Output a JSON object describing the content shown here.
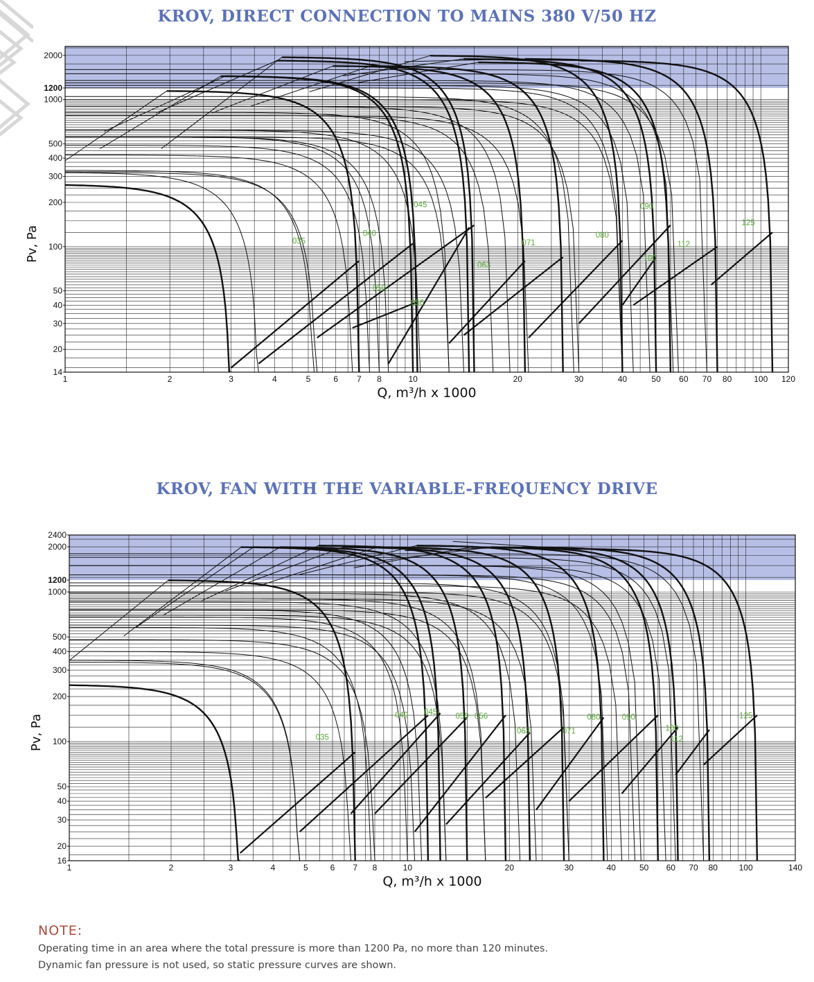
{
  "chart_data": [
    {
      "type": "line",
      "title": "KROV, DIRECT CONNECTION TO MAINS 380 V/50 HZ",
      "xlabel": "Q, m³/h x 1000",
      "ylabel": "Pv, Pa",
      "xscale": "log",
      "yscale": "log",
      "xlim": [
        1,
        120
      ],
      "ylim": [
        14,
        2300
      ],
      "x_ticks": [
        "1",
        "2",
        "3",
        "4",
        "5",
        "6",
        "7",
        "8",
        "10",
        "20",
        "30",
        "40",
        "50",
        "60",
        "70",
        "80",
        "100",
        "120"
      ],
      "y_ticks": [
        "14",
        "20",
        "30",
        "40",
        "50",
        "100",
        "200",
        "300",
        "400",
        "500",
        "1000",
        "1200",
        "2000"
      ],
      "highlight_band": {
        "from": 1200,
        "to": 2300,
        "color": "#b7bfe6"
      },
      "series": [
        {
          "name": "035",
          "label_at": [
            4.7,
            105
          ],
          "curves": [
            {
              "p0": 265,
              "qmax": 3.0,
              "bold": true
            },
            {
              "p0": 330,
              "qmax": 5.2,
              "bold": false
            },
            {
              "p0": 1150,
              "qmax": 7.0,
              "bold": true
            }
          ],
          "corner_low": [
            3.0,
            15
          ],
          "corner_high": [
            7.0,
            80
          ]
        },
        {
          "name": "040",
          "label_at": [
            7.5,
            118
          ],
          "curves": [
            {
              "p0": 320,
              "qmax": 3.6,
              "bold": false
            },
            {
              "p0": 490,
              "qmax": 7.5,
              "bold": false
            },
            {
              "p0": 1450,
              "qmax": 10.0,
              "bold": true
            }
          ],
          "corner_low": [
            3.6,
            16
          ],
          "corner_high": [
            10.0,
            105
          ]
        },
        {
          "name": "045",
          "label_at": [
            10.5,
            185
          ],
          "curves": [
            {
              "p0": 320,
              "qmax": 5.3,
              "bold": false
            },
            {
              "p0": 560,
              "qmax": 8.0,
              "bold": false
            },
            {
              "p0": 1950,
              "qmax": 15.0,
              "bold": true
            }
          ],
          "corner_low": [
            5.3,
            24
          ],
          "corner_high": [
            15.0,
            140
          ]
        },
        {
          "name": "050",
          "label_at": [
            8.0,
            50
          ],
          "curves": [
            {
              "p0": 420,
              "qmax": 6.7,
              "bold": false
            },
            {
              "p0": 620,
              "qmax": 10.5,
              "bold": false
            },
            {
              "p0": 1450,
              "qmax": 10.3,
              "bold": true
            }
          ],
          "corner_low": [
            6.7,
            28
          ],
          "corner_high": [
            10.3,
            42
          ]
        },
        {
          "name": "056",
          "label_at": [
            10.3,
            40
          ],
          "curves": [
            {
              "p0": 560,
              "qmax": 8.5,
              "bold": false
            },
            {
              "p0": 820,
              "qmax": 12.7,
              "bold": false
            },
            {
              "p0": 1850,
              "qmax": 14.5,
              "bold": true
            }
          ],
          "corner_low": [
            8.5,
            16
          ],
          "corner_high": [
            14.5,
            135
          ]
        },
        {
          "name": "063",
          "label_at": [
            16.0,
            72
          ],
          "curves": [
            {
              "p0": 560,
              "qmax": 12.7,
              "bold": false
            },
            {
              "p0": 780,
              "qmax": 17.0,
              "bold": false
            },
            {
              "p0": 1700,
              "qmax": 21.0,
              "bold": true
            }
          ],
          "corner_low": [
            12.7,
            22
          ],
          "corner_high": [
            21.0,
            80
          ]
        },
        {
          "name": "071",
          "label_at": [
            21.5,
            102
          ],
          "curves": [
            {
              "p0": 620,
              "qmax": 14.0,
              "bold": false
            },
            {
              "p0": 900,
              "qmax": 19.0,
              "bold": false
            },
            {
              "p0": 1700,
              "qmax": 27.0,
              "bold": true
            }
          ],
          "corner_low": [
            14.0,
            25
          ],
          "corner_high": [
            27.0,
            85
          ]
        },
        {
          "name": "080",
          "label_at": [
            35.0,
            115
          ],
          "curves": [
            {
              "p0": 780,
              "qmax": 21.5,
              "bold": false
            },
            {
              "p0": 1050,
              "qmax": 29.0,
              "bold": false
            },
            {
              "p0": 2000,
              "qmax": 40.0,
              "bold": true
            }
          ],
          "corner_low": [
            21.5,
            24
          ],
          "corner_high": [
            40.0,
            110
          ]
        },
        {
          "name": "090",
          "label_at": [
            47.0,
            180
          ],
          "curves": [
            {
              "p0": 900,
              "qmax": 30.0,
              "bold": false
            },
            {
              "p0": 1200,
              "qmax": 40.0,
              "bold": false
            },
            {
              "p0": 1800,
              "qmax": 55.0,
              "bold": true
            }
          ],
          "corner_low": [
            30.0,
            30
          ],
          "corner_high": [
            55.0,
            140
          ]
        },
        {
          "name": "100",
          "label_at": [
            48.0,
            80
          ],
          "curves": [
            {
              "p0": 1000,
              "qmax": 40.0,
              "bold": false
            },
            {
              "p0": 1350,
              "qmax": 48.0,
              "bold": false
            },
            {
              "p0": 1900,
              "qmax": 50.0,
              "bold": true
            }
          ],
          "corner_low": [
            40.0,
            40
          ],
          "corner_high": [
            50.0,
            85
          ]
        },
        {
          "name": "112",
          "label_at": [
            60.0,
            100
          ],
          "curves": [
            {
              "p0": 1250,
              "qmax": 43.0,
              "bold": false
            },
            {
              "p0": 1500,
              "qmax": 56.0,
              "bold": false
            },
            {
              "p0": 1900,
              "qmax": 75.0,
              "bold": true
            }
          ],
          "corner_low": [
            43.0,
            40
          ],
          "corner_high": [
            75.0,
            100
          ]
        },
        {
          "name": "125",
          "label_at": [
            92.0,
            140
          ],
          "curves": [
            {
              "p0": 1300,
              "qmax": 58.0,
              "bold": false
            },
            {
              "p0": 1600,
              "qmax": 70.0,
              "bold": false
            },
            {
              "p0": 1850,
              "qmax": 108.0,
              "bold": true
            }
          ],
          "corner_low": [
            72.0,
            55
          ],
          "corner_high": [
            108.0,
            125
          ]
        }
      ]
    },
    {
      "type": "line",
      "title": "KROV, FAN WITH THE VARIABLE-FREQUENCY DRIVE",
      "xlabel": "Q, m³/h x 1000",
      "ylabel": "Pv, Pa",
      "xscale": "log",
      "yscale": "log",
      "xlim": [
        1,
        140
      ],
      "ylim": [
        16,
        2400
      ],
      "x_ticks": [
        "1",
        "2",
        "3",
        "4",
        "5",
        "6",
        "7",
        "8",
        "10",
        "20",
        "30",
        "40",
        "50",
        "60",
        "70",
        "80",
        "100",
        "140"
      ],
      "y_ticks": [
        "16",
        "20",
        "30",
        "40",
        "50",
        "100",
        "200",
        "300",
        "400",
        "500",
        "1000",
        "1200",
        "2000",
        "2400"
      ],
      "highlight_band": {
        "from": 1200,
        "to": 2400,
        "color": "#b7bfe6"
      },
      "series": [
        {
          "name": "035",
          "label_at": [
            5.6,
            103
          ],
          "curves": [
            {
              "p0": 240,
              "qmax": 3.2,
              "bold": true
            },
            {
              "p0": 340,
              "qmax": 4.8,
              "bold": false
            },
            {
              "p0": 1200,
              "qmax": 7.0,
              "bold": true
            }
          ],
          "corner_low": [
            3.2,
            18
          ],
          "corner_high": [
            7.0,
            85
          ]
        },
        {
          "name": "040",
          "label_at": [
            9.6,
            145
          ],
          "curves": [
            {
              "p0": 350,
              "qmax": 4.8,
              "bold": false
            },
            {
              "p0": 580,
              "qmax": 7.8,
              "bold": false
            },
            {
              "p0": 2000,
              "qmax": 11.5,
              "bold": true
            }
          ],
          "corner_low": [
            4.8,
            25
          ],
          "corner_high": [
            11.5,
            150
          ]
        },
        {
          "name": "045",
          "label_at": [
            11.7,
            152
          ],
          "curves": [
            {
              "p0": 400,
              "qmax": 6.8,
              "bold": false
            },
            {
              "p0": 680,
              "qmax": 10.0,
              "bold": false
            },
            {
              "p0": 2000,
              "qmax": 12.5,
              "bold": true
            }
          ],
          "corner_low": [
            6.8,
            33
          ],
          "corner_high": [
            12.5,
            155
          ]
        },
        {
          "name": "050",
          "label_at": [
            14.5,
            142
          ],
          "curves": [
            {
              "p0": 480,
              "qmax": 8.0,
              "bold": false
            },
            {
              "p0": 760,
              "qmax": 11.0,
              "bold": false
            },
            {
              "p0": 2000,
              "qmax": 15.0,
              "bold": true
            }
          ],
          "corner_low": [
            8.0,
            33
          ],
          "corner_high": [
            15.0,
            145
          ]
        },
        {
          "name": "056",
          "label_at": [
            16.5,
            142
          ],
          "curves": [
            {
              "p0": 600,
              "qmax": 10.5,
              "bold": false
            },
            {
              "p0": 860,
              "qmax": 13.0,
              "bold": false
            },
            {
              "p0": 2050,
              "qmax": 19.5,
              "bold": true
            }
          ],
          "corner_low": [
            10.5,
            25
          ],
          "corner_high": [
            19.5,
            150
          ]
        },
        {
          "name": "063",
          "label_at": [
            22.0,
            113
          ],
          "curves": [
            {
              "p0": 700,
              "qmax": 13.0,
              "bold": false
            },
            {
              "p0": 900,
              "qmax": 17.0,
              "bold": false
            },
            {
              "p0": 2000,
              "qmax": 23.0,
              "bold": true
            }
          ],
          "corner_low": [
            13.0,
            28
          ],
          "corner_high": [
            23.0,
            115
          ]
        },
        {
          "name": "071",
          "label_at": [
            30.0,
            113
          ],
          "curves": [
            {
              "p0": 760,
              "qmax": 17.0,
              "bold": false
            },
            {
              "p0": 980,
              "qmax": 21.5,
              "bold": false
            },
            {
              "p0": 2000,
              "qmax": 29.0,
              "bold": true
            }
          ],
          "corner_low": [
            17.0,
            42
          ],
          "corner_high": [
            29.0,
            125
          ]
        },
        {
          "name": "080",
          "label_at": [
            35.5,
            140
          ],
          "curves": [
            {
              "p0": 900,
              "qmax": 24.0,
              "bold": false
            },
            {
              "p0": 1150,
              "qmax": 30.0,
              "bold": false
            },
            {
              "p0": 2050,
              "qmax": 38.0,
              "bold": true
            }
          ],
          "corner_low": [
            24.0,
            35
          ],
          "corner_high": [
            38.0,
            145
          ]
        },
        {
          "name": "090",
          "label_at": [
            45.0,
            140
          ],
          "curves": [
            {
              "p0": 1000,
              "qmax": 30.0,
              "bold": false
            },
            {
              "p0": 1300,
              "qmax": 39.0,
              "bold": false
            },
            {
              "p0": 2000,
              "qmax": 55.0,
              "bold": true
            }
          ],
          "corner_low": [
            30.0,
            40
          ],
          "corner_high": [
            55.0,
            150
          ]
        },
        {
          "name": "100",
          "label_at": [
            60.5,
            118
          ],
          "curves": [
            {
              "p0": 1100,
              "qmax": 43.0,
              "bold": false
            },
            {
              "p0": 1500,
              "qmax": 49.0,
              "bold": false
            },
            {
              "p0": 2000,
              "qmax": 63.0,
              "bold": true
            }
          ],
          "corner_low": [
            43.0,
            45
          ],
          "corner_high": [
            63.0,
            125
          ]
        },
        {
          "name": "112",
          "label_at": [
            62.5,
            100
          ],
          "curves": [
            {
              "p0": 1300,
              "qmax": 47.0,
              "bold": false
            },
            {
              "p0": 1700,
              "qmax": 62.0,
              "bold": false
            },
            {
              "p0": 2000,
              "qmax": 78.0,
              "bold": true
            }
          ],
          "corner_low": [
            62.0,
            60
          ],
          "corner_high": [
            78.0,
            120
          ]
        },
        {
          "name": "125",
          "label_at": [
            100.0,
            143
          ],
          "curves": [
            {
              "p0": 1500,
              "qmax": 58.0,
              "bold": false
            },
            {
              "p0": 1800,
              "qmax": 75.0,
              "bold": false
            },
            {
              "p0": 1950,
              "qmax": 108.0,
              "bold": true
            }
          ],
          "corner_low": [
            75.0,
            70
          ],
          "corner_high": [
            108.0,
            150
          ]
        }
      ]
    }
  ],
  "note": {
    "heading": "NOTE:",
    "line1": "Operating time in an area where the total pressure is more than 1200 Pa, no more than 120 minutes.",
    "line2": "Dynamic fan pressure is not used, so static pressure curves are shown."
  }
}
